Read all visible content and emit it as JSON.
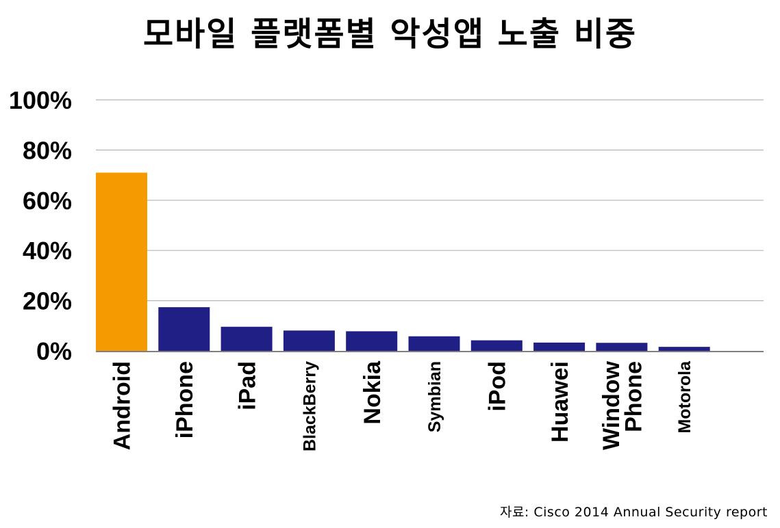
{
  "chart_data": {
    "type": "bar",
    "title": "모바일 플랫폼별 악성앱 노출 비중",
    "categories": [
      "Android",
      "iPhone",
      "iPad",
      "BlackBerry",
      "Nokia",
      "Symbian",
      "iPod",
      "Huawei",
      "Window Phone",
      "Motorola"
    ],
    "values": [
      71,
      17.4,
      9.6,
      8.1,
      7.8,
      5.8,
      4.2,
      3.3,
      3.2,
      1.6
    ],
    "bar_colors": [
      "#f59a00",
      "#1f1f86",
      "#1f1f86",
      "#1f1f86",
      "#1f1f86",
      "#1f1f86",
      "#1f1f86",
      "#1f1f86",
      "#1f1f86",
      "#1f1f86"
    ],
    "y_ticks": [
      "0%",
      "20%",
      "40%",
      "60%",
      "80%",
      "100%"
    ],
    "ylim": [
      0,
      100
    ],
    "grid": true,
    "xlabel": "",
    "ylabel": ""
  },
  "source": "자료: Cisco 2014 Annual Security report",
  "colors": {
    "highlight": "#f59a00",
    "bar": "#1f1f86",
    "grid": "#b5b5b5",
    "axis": "#7f7f7f"
  }
}
